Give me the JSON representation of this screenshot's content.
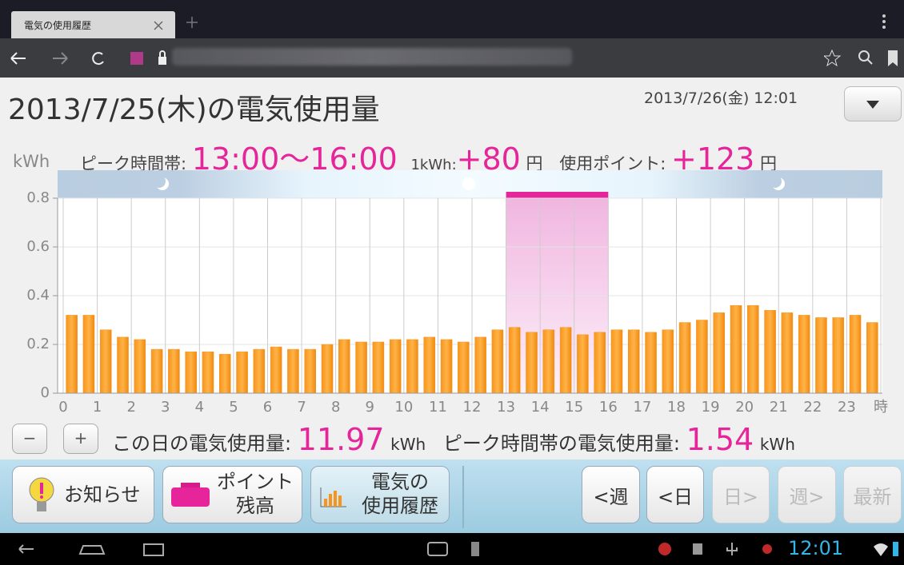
{
  "browser": {
    "tab_title": "電気の使用履歴"
  },
  "header": {
    "title": "2013/7/25(木)の電気使用量",
    "timestamp": "2013/7/26(金) 12:01"
  },
  "tariff": {
    "peak_label": "ピーク時間帯:",
    "peak_hours": "13:00〜16:00",
    "rate_label": "1kWh:",
    "rate": "+80",
    "rate_unit": "円",
    "points_label": "使用ポイント:",
    "points": "+123",
    "points_unit": "円"
  },
  "chart_data": {
    "type": "bar",
    "ylabel": "kWh",
    "xlabel": "時",
    "color": "#f7941d",
    "x": [
      0,
      0.5,
      1,
      1.5,
      2,
      2.5,
      3,
      3.5,
      4,
      4.5,
      5,
      5.5,
      6,
      6.5,
      7,
      7.5,
      8,
      8.5,
      9,
      9.5,
      10,
      10.5,
      11,
      11.5,
      12,
      12.5,
      13,
      13.5,
      14,
      14.5,
      15,
      15.5,
      16,
      16.5,
      17,
      17.5,
      18,
      18.5,
      19,
      19.5,
      20,
      20.5,
      21,
      21.5,
      22,
      22.5,
      23,
      23.5
    ],
    "values": [
      0.32,
      0.32,
      0.26,
      0.23,
      0.22,
      0.18,
      0.18,
      0.17,
      0.17,
      0.16,
      0.17,
      0.18,
      0.19,
      0.18,
      0.18,
      0.2,
      0.22,
      0.21,
      0.21,
      0.22,
      0.22,
      0.23,
      0.22,
      0.21,
      0.23,
      0.26,
      0.27,
      0.25,
      0.26,
      0.27,
      0.24,
      0.25,
      0.26,
      0.26,
      0.25,
      0.26,
      0.29,
      0.3,
      0.33,
      0.36,
      0.36,
      0.34,
      0.33,
      0.32,
      0.31,
      0.31,
      0.32,
      0.29
    ],
    "highlight": {
      "from": 13,
      "to": 16,
      "color": "#e6259a"
    },
    "xlim": [
      0,
      24
    ],
    "xticks": [
      0,
      1,
      2,
      3,
      4,
      5,
      6,
      7,
      8,
      9,
      10,
      11,
      12,
      13,
      14,
      15,
      16,
      17,
      18,
      19,
      20,
      21,
      22,
      23
    ],
    "ylim": [
      0,
      0.8
    ],
    "yticks": [
      0,
      0.2,
      0.4,
      0.6,
      0.8
    ],
    "grid": true
  },
  "summary": {
    "zoom": [
      "−",
      "+"
    ],
    "day_label": "この日の電気使用量:",
    "day_value": "11.97",
    "day_unit": "kWh",
    "peak_label": "ピーク時間帯の電気使用量:",
    "peak_value": "1.54",
    "peak_unit": "kWh"
  },
  "toolbar": {
    "tabs": [
      {
        "lines": [
          "お知らせ"
        ]
      },
      {
        "lines": [
          "ポイント",
          "残高"
        ]
      },
      {
        "lines": [
          "電気の",
          "使用履歴"
        ]
      }
    ],
    "nav": [
      "<週",
      "<日",
      "日>",
      "週>",
      "最新"
    ]
  },
  "status": {
    "clock": "12:01"
  }
}
